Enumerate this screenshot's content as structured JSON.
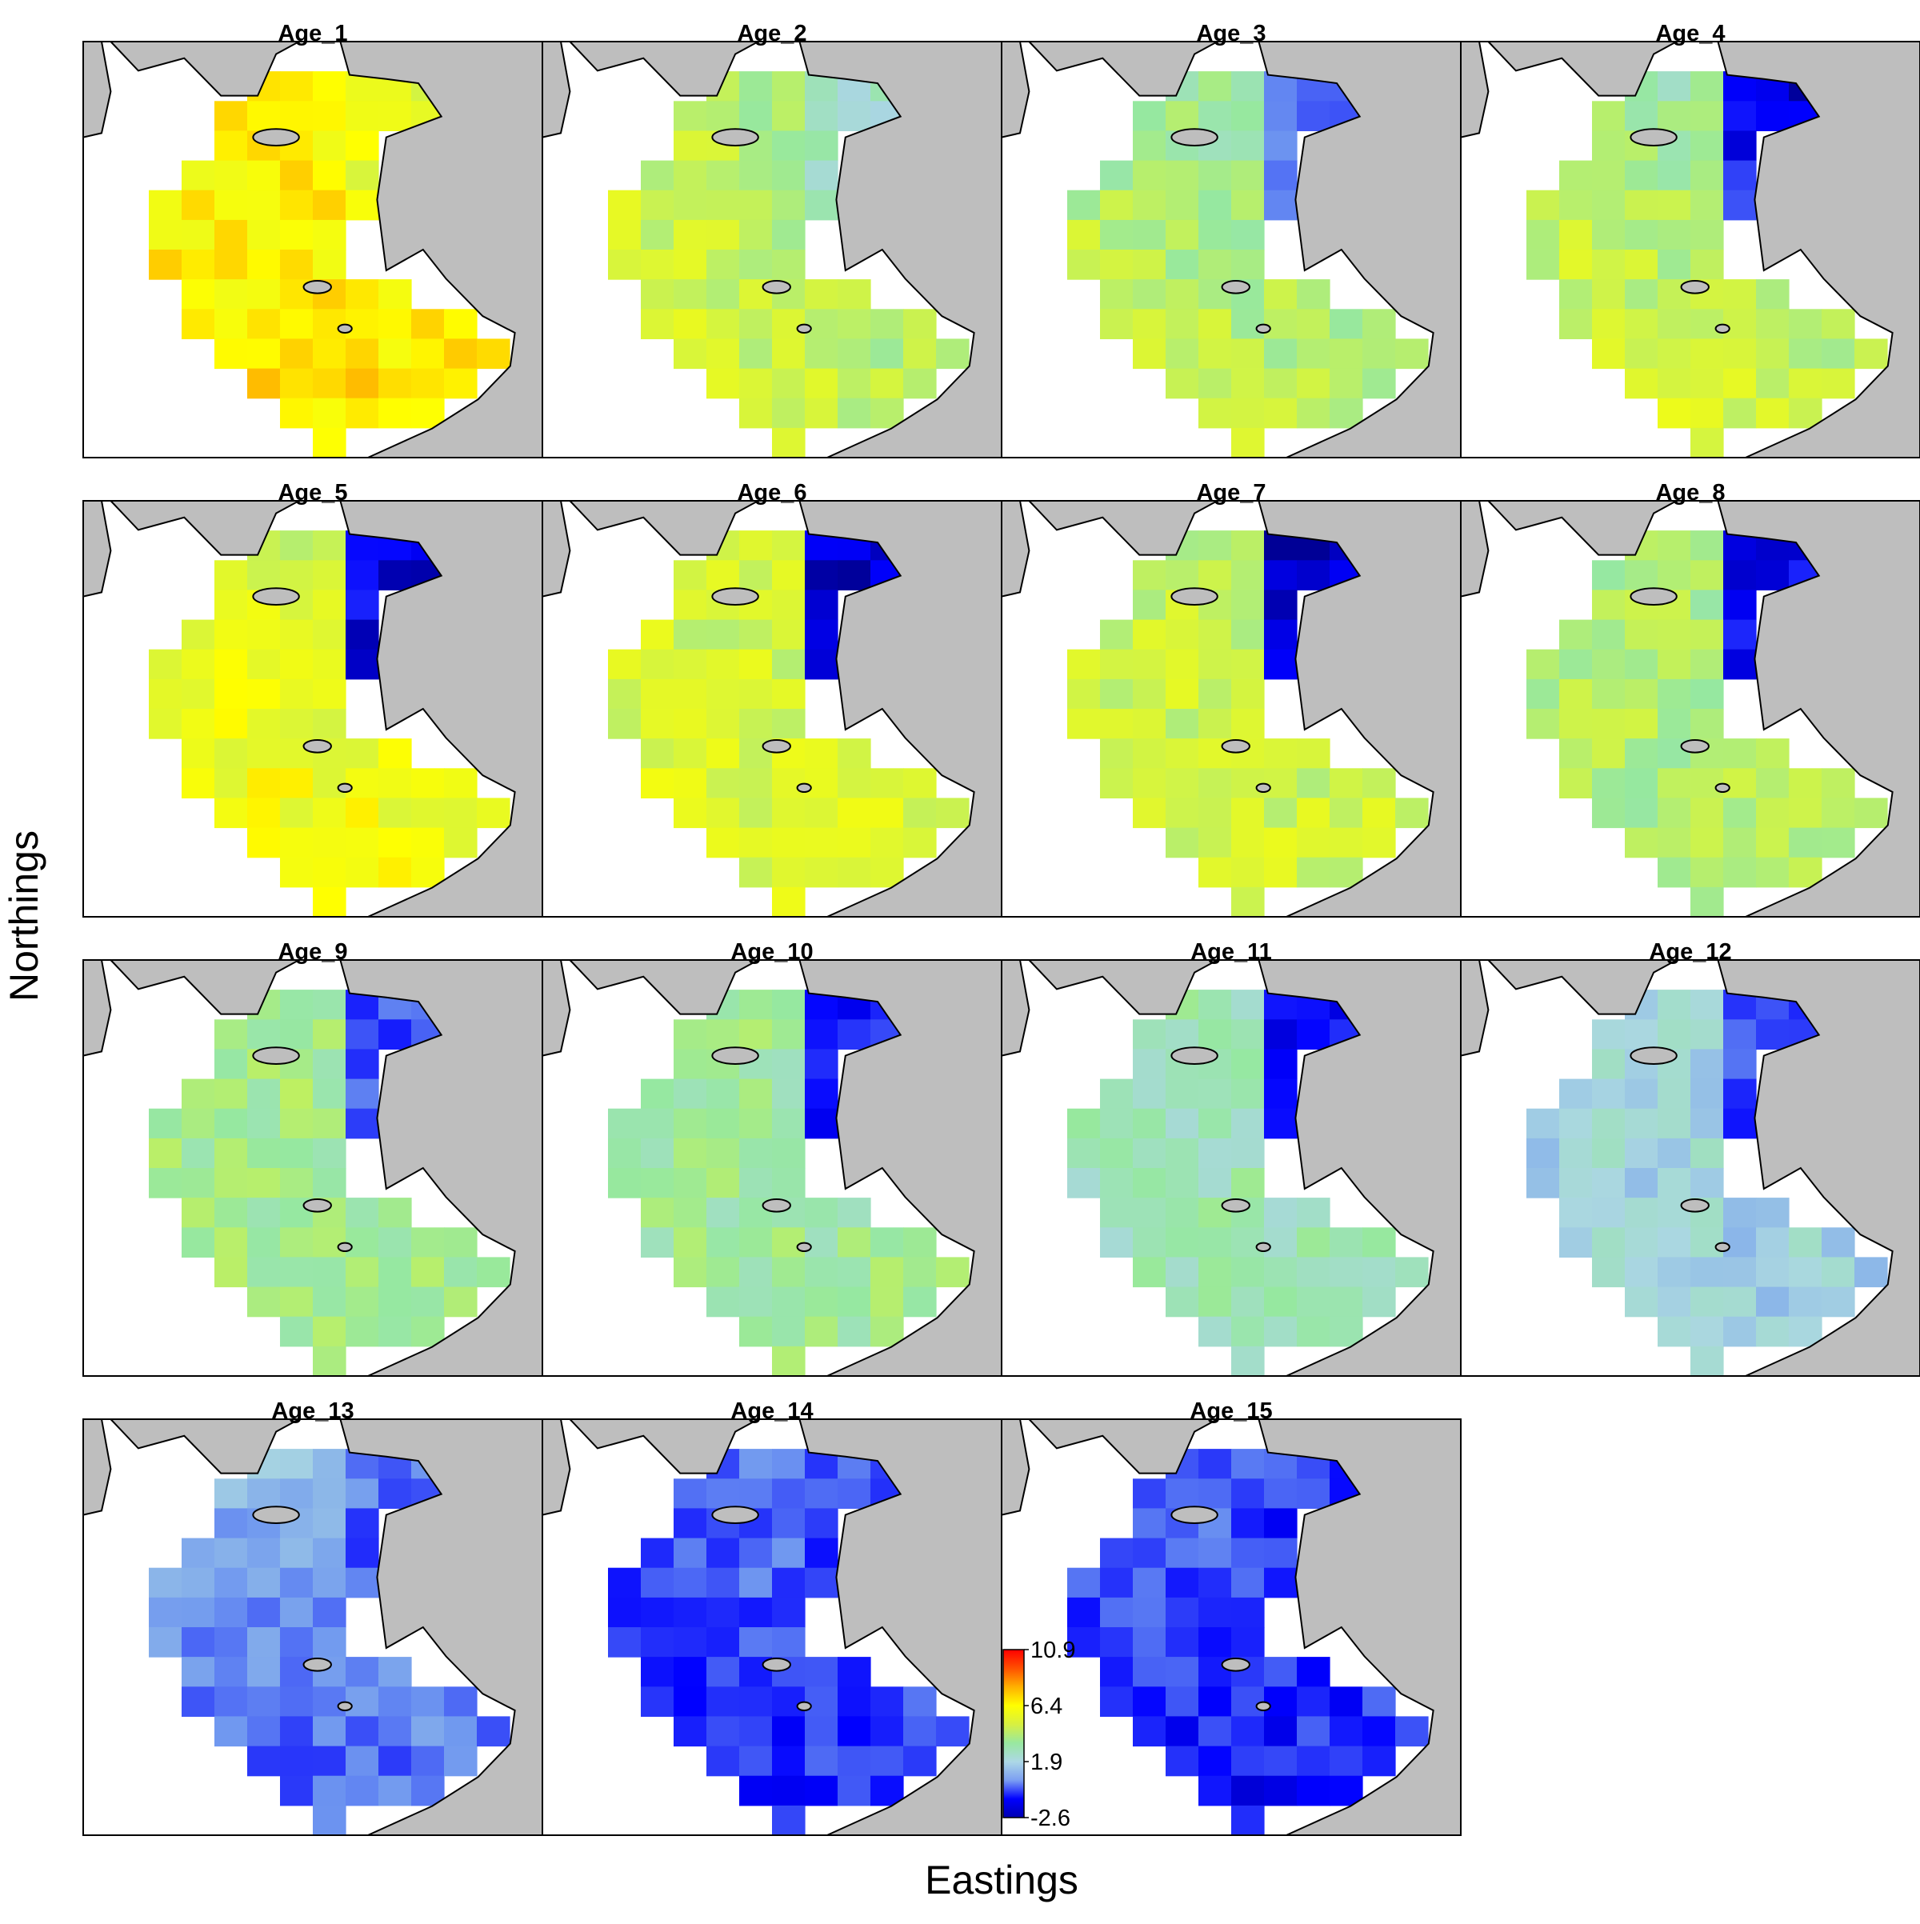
{
  "figure": {
    "xlabel": "Eastings",
    "ylabel": "Northings"
  },
  "panels": [
    {
      "title": "Age_1"
    },
    {
      "title": "Age_2"
    },
    {
      "title": "Age_3"
    },
    {
      "title": "Age_4"
    },
    {
      "title": "Age_5"
    },
    {
      "title": "Age_6"
    },
    {
      "title": "Age_7"
    },
    {
      "title": "Age_8"
    },
    {
      "title": "Age_9"
    },
    {
      "title": "Age_10"
    },
    {
      "title": "Age_11"
    },
    {
      "title": "Age_12"
    },
    {
      "title": "Age_13"
    },
    {
      "title": "Age_14"
    },
    {
      "title": "Age_15"
    }
  ],
  "legend": {
    "ticks": [
      "10.9",
      "6.4",
      "1.9",
      "-2.6"
    ],
    "min": -2.6,
    "max": 10.9,
    "colors": [
      "#0000b0",
      "#0000ff",
      "#7b9ef2",
      "#add8e6",
      "#98e8a0",
      "#d8f040",
      "#ffff00",
      "#ffb000",
      "#ff5000",
      "#ff0000"
    ]
  },
  "colors": {
    "land": "#bebebe",
    "frame": "#000000"
  }
}
